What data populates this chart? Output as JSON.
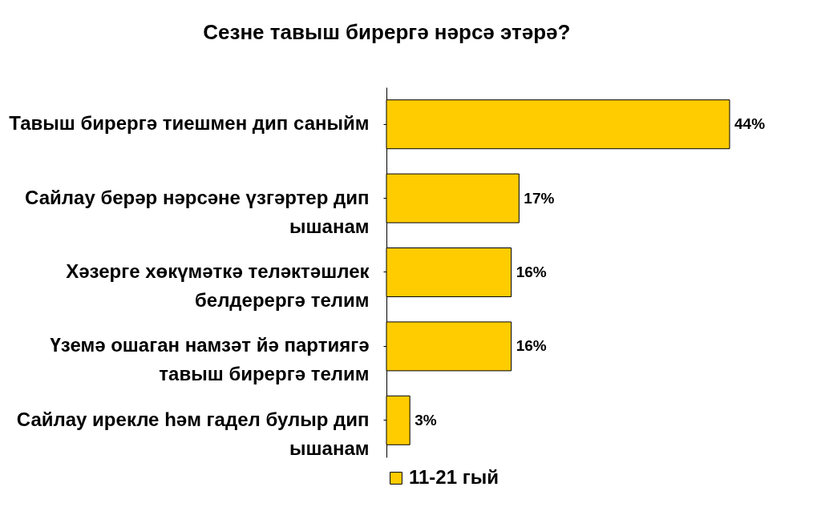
{
  "chart_data": {
    "type": "bar",
    "orientation": "horizontal",
    "title": "Сезне тавыш бирергә нәрсә этәрә?",
    "categories": [
      "Тавыш бирергә тиешмен дип саныйм",
      "Сайлау берәр нәрсәне үзгәртер дип ышанам",
      "Хәзерге хөкүмәткә теләктәшлек белдерергә телим",
      "Үземә ошаган намзәт йә партиягә тавыш бирергә телим",
      "Сайлау ирекле һәм гадел булыр дип ышанам"
    ],
    "series": [
      {
        "name": "11-21 гый",
        "color": "#ffcc00",
        "values": [
          44,
          17,
          16,
          16,
          3
        ],
        "value_labels": [
          "44%",
          "17%",
          "16%",
          "16%",
          "3%"
        ]
      }
    ],
    "legend": "bottom"
  }
}
